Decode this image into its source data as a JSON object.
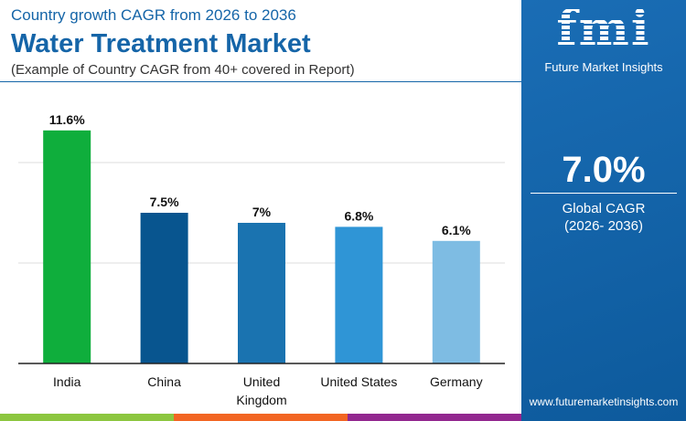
{
  "header": {
    "subtitle": "Country growth CAGR from 2026 to 2036",
    "title": "Water Treatment Market",
    "note": "(Example of Country CAGR from 40+ covered in Report)"
  },
  "panel": {
    "logo": "fmi",
    "brand": "Future Market Insights",
    "value": "7.0%",
    "label": "Global CAGR",
    "period": "(2026- 2036)",
    "url": "www.futuremarketinsights.com"
  },
  "chart_data": {
    "type": "bar",
    "categories": [
      "India",
      "China",
      "United Kingdom",
      "United States",
      "Germany"
    ],
    "values": [
      11.6,
      7.5,
      7,
      6.8,
      6.1
    ],
    "labels": [
      "11.6%",
      "7.5%",
      "7%",
      "6.8%",
      "6.1%"
    ],
    "colors": [
      "#0fae3c",
      "#08558f",
      "#1a73b0",
      "#2f95d6",
      "#7ebce3"
    ],
    "ylim": [
      0,
      12.5
    ],
    "grid": true,
    "gridlines": [
      5,
      10
    ]
  },
  "colors": {
    "accent": "#1565a8",
    "strip": [
      "#8cc63f",
      "#f26522",
      "#92278f"
    ]
  }
}
